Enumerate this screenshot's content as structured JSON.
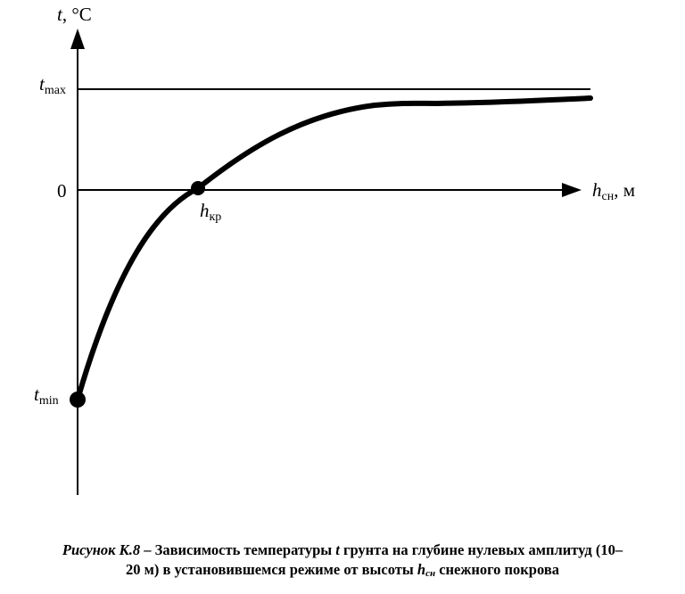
{
  "labels": {
    "y_axis_var": "t",
    "y_axis_unit": ", °C",
    "t_max_main": "t",
    "t_max_sub": "max",
    "t_min_main": "t",
    "t_min_sub": "min",
    "zero": "0",
    "x_axis_var": "h",
    "x_axis_sub": "сн",
    "x_axis_unit": ", м",
    "h_kr_main": "h",
    "h_kr_sub": "кр"
  },
  "caption": {
    "prefix": "Рисунок К.8",
    "part1": " – Зависимость температуры ",
    "t_var": "t",
    "part2": " грунта на глубине нулевых амплитуд (10–",
    "part3": "20 м) в установившемся режиме от высоты ",
    "h_var": "h",
    "h_sub": "сн",
    "part4": " снежного покрова"
  }
}
